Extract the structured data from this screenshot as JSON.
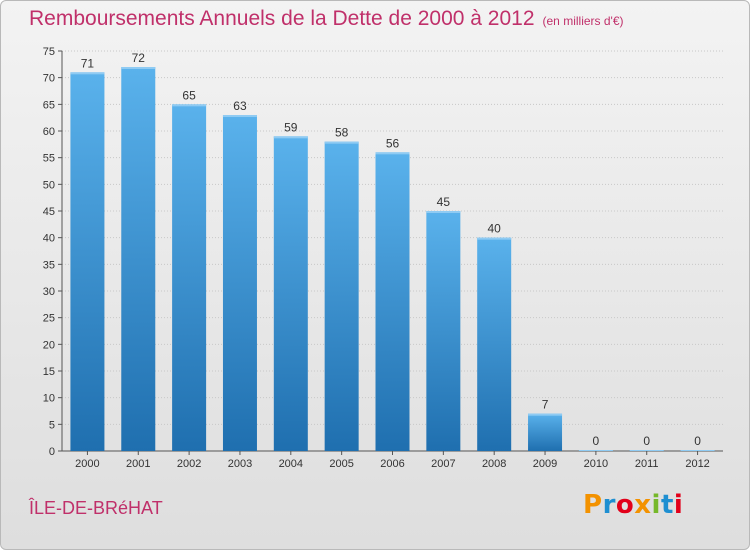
{
  "chart_data": {
    "type": "bar",
    "title": "Remboursements Annuels de la Dette de 2000 à 2012",
    "unit": "(en milliers d'€)",
    "categories": [
      "2000",
      "2001",
      "2002",
      "2003",
      "2004",
      "2005",
      "2006",
      "2007",
      "2008",
      "2009",
      "2010",
      "2011",
      "2012"
    ],
    "values": [
      71,
      72,
      65,
      63,
      59,
      58,
      56,
      45,
      40,
      7,
      0,
      0,
      0
    ],
    "ylim": [
      0,
      75
    ],
    "yticks": [
      0,
      5,
      10,
      15,
      20,
      25,
      30,
      35,
      40,
      45,
      50,
      55,
      60,
      65,
      70,
      75
    ],
    "xlabel": "",
    "ylabel": "",
    "grid": true
  },
  "commune": "ÎLE-DE-BRéHAT",
  "logo": {
    "letters": [
      "P",
      "r",
      "o",
      "x",
      "i",
      "t",
      "i"
    ],
    "colors": [
      "#f39200",
      "#1e8fd1",
      "#e2001a",
      "#f39200",
      "#76b82a",
      "#1e8fd1",
      "#e2001a"
    ]
  },
  "colors": {
    "title": "#c0306a",
    "bar_top": "#5ab2ec",
    "bar_bottom": "#1f6faf",
    "grid": "#c8c8c8",
    "axis": "#555555"
  }
}
